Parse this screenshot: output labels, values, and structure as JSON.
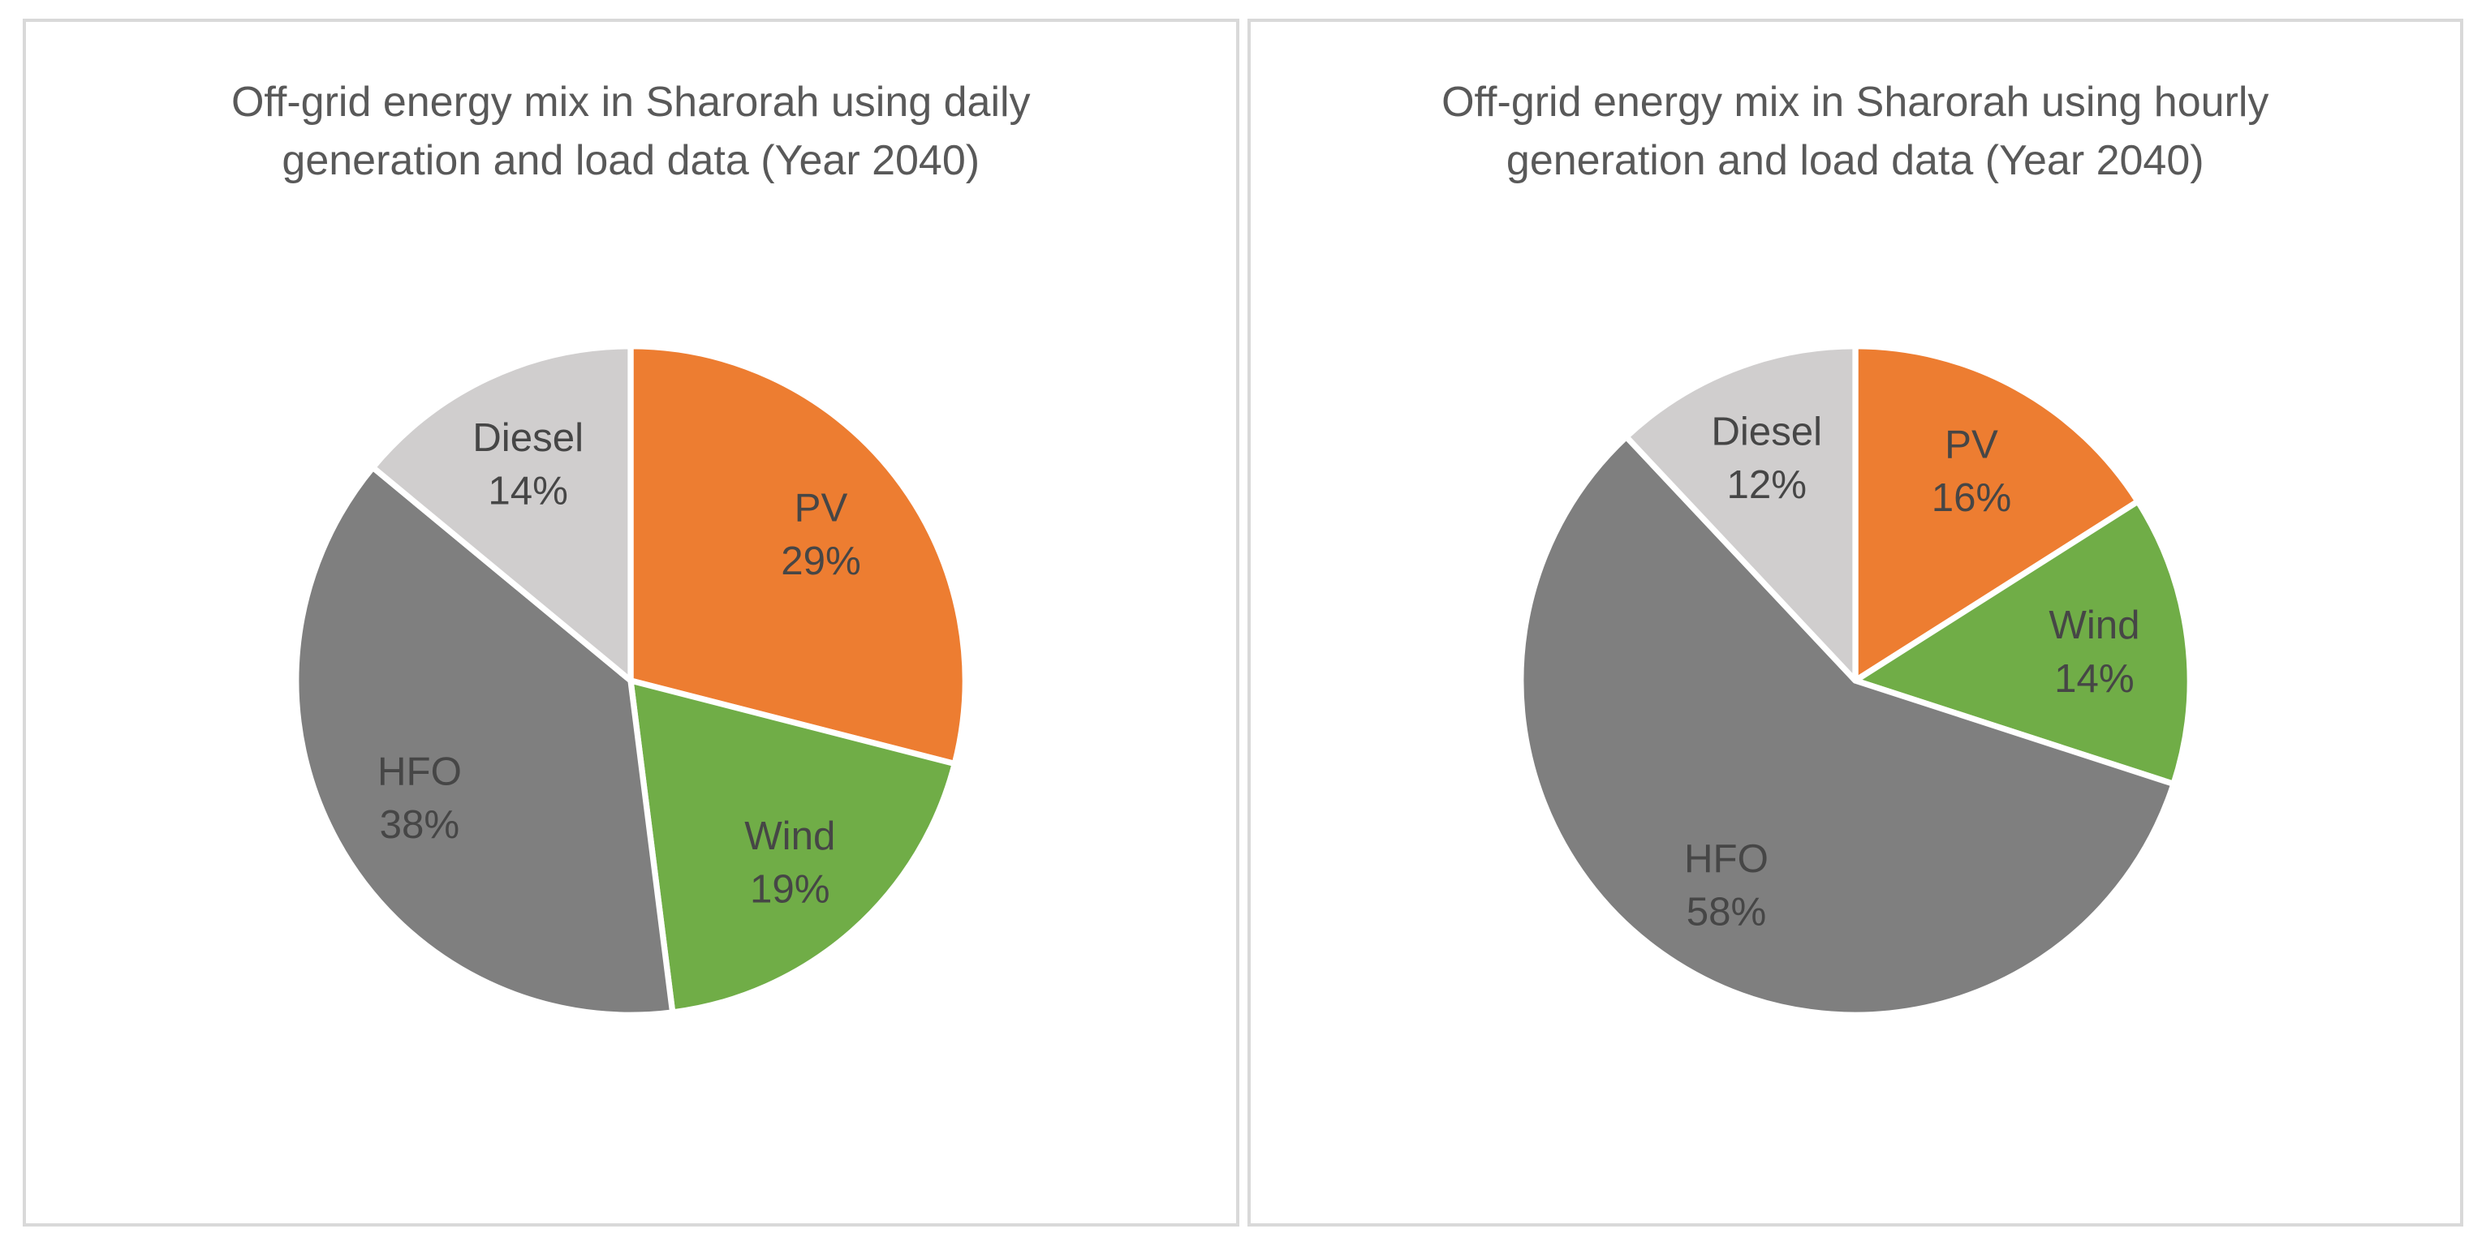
{
  "page": {
    "background_color": "#ffffff",
    "panel_border_color": "#d9d9d9",
    "title_color": "#595959",
    "label_color": "#464646",
    "slice_separator_color": "#ffffff"
  },
  "chart_data": [
    {
      "type": "pie",
      "title": "Off-grid energy mix in Sharorah using daily generation and load data (Year 2040)",
      "legend": "none",
      "label_position": "inside",
      "start_angle_deg": 0,
      "direction": "clockwise",
      "label_suffix": "%",
      "slices": [
        {
          "label": "PV",
          "value": 29,
          "color": "#ED7D31"
        },
        {
          "label": "Wind",
          "value": 19,
          "color": "#70AD47"
        },
        {
          "label": "HFO",
          "value": 38,
          "color": "#7F7F7F"
        },
        {
          "label": "Diesel",
          "value": 14,
          "color": "#D0CECE"
        }
      ]
    },
    {
      "type": "pie",
      "title": "Off-grid energy mix in Sharorah using hourly generation and load data (Year 2040)",
      "legend": "none",
      "label_position": "inside",
      "start_angle_deg": 0,
      "direction": "clockwise",
      "label_suffix": "%",
      "slices": [
        {
          "label": "PV",
          "value": 16,
          "color": "#ED7D31"
        },
        {
          "label": "Wind",
          "value": 14,
          "color": "#70AD47"
        },
        {
          "label": "HFO",
          "value": 58,
          "color": "#7F7F7F"
        },
        {
          "label": "Diesel",
          "value": 12,
          "color": "#D0CECE"
        }
      ]
    }
  ]
}
